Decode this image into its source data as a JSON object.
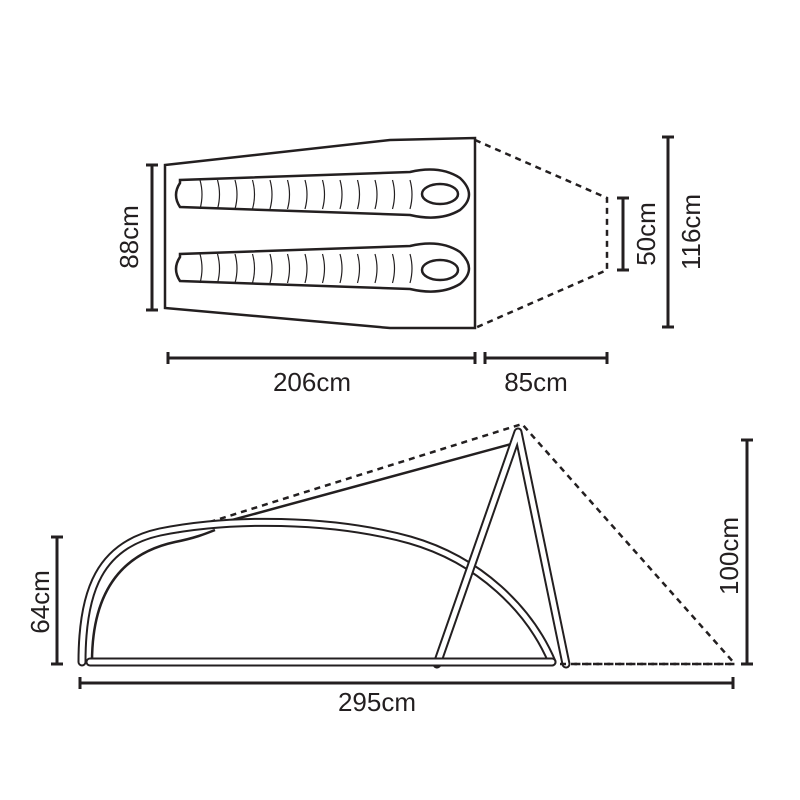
{
  "colors": {
    "line": "#231f20",
    "background": "#ffffff"
  },
  "top_view": {
    "width_label": "88cm",
    "body_length_label": "206cm",
    "vestibule_length_label": "85cm",
    "vestibule_end_width_label": "50cm",
    "overall_width_label": "116cm",
    "sleeping_bags": 2
  },
  "side_view": {
    "inner_height_label": "64cm",
    "peak_height_label": "100cm",
    "total_length_label": "295cm"
  }
}
